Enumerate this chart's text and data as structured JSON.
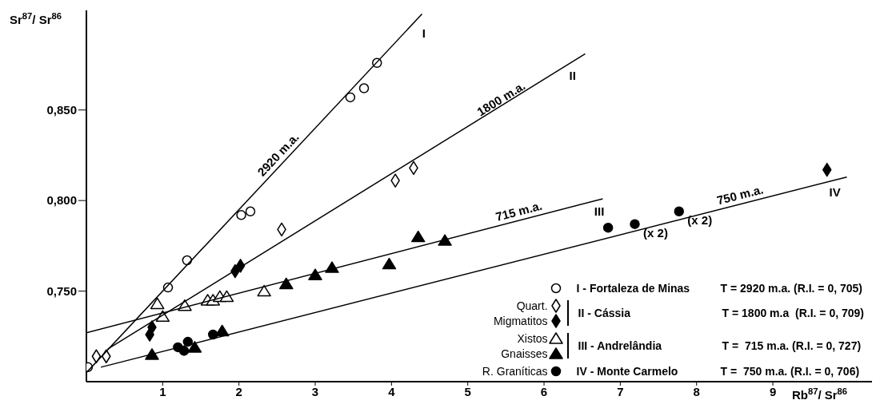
{
  "chart_data": {
    "type": "scatter",
    "xlabel": "Rb$^{87}$/ Sr$^{86}$",
    "ylabel": "Sr$^{87}$/ Sr$^{86}$",
    "xlim": [
      0,
      10.3
    ],
    "ylim": [
      0.7,
      0.905
    ],
    "xticks": [
      1,
      2,
      3,
      4,
      5,
      6,
      7,
      8,
      9
    ],
    "yticks": [
      {
        "value": 0.75,
        "label": "0,750"
      },
      {
        "value": 0.8,
        "label": "0,800"
      },
      {
        "value": 0.85,
        "label": "0,850"
      }
    ],
    "legend": "bottom right",
    "series": [
      {
        "marker": "circle",
        "color": "#ffffff",
        "x": [
          0.02,
          1.07,
          1.32,
          2.03,
          2.15,
          3.46,
          3.64,
          3.81
        ],
        "values": [
          0.708,
          0.752,
          0.767,
          0.792,
          0.794,
          0.857,
          0.862,
          0.876
        ]
      },
      {
        "name": "Quart.",
        "marker": "diamond",
        "color": "#ffffff",
        "x": [
          0.13,
          0.26,
          2.56,
          4.05,
          4.29
        ],
        "values": [
          0.714,
          0.714,
          0.784,
          0.811,
          0.818
        ]
      },
      {
        "name": "Migmatitos",
        "marker": "diamond",
        "color": "#000000",
        "x": [
          0.83,
          0.86,
          1.95,
          2.02,
          9.71
        ],
        "values": [
          0.726,
          0.73,
          0.761,
          0.764,
          0.817
        ]
      },
      {
        "name": "Xistos",
        "marker": "triangle",
        "color": "#ffffff",
        "x": [
          0.93,
          1.0,
          1.29,
          1.59,
          1.66,
          1.75,
          1.84,
          2.33
        ],
        "values": [
          0.743,
          0.736,
          0.742,
          0.745,
          0.745,
          0.747,
          0.747,
          0.75
        ]
      },
      {
        "name": "Gnaisses",
        "marker": "triangle",
        "color": "#000000",
        "x": [
          0.86,
          1.42,
          1.78,
          2.62,
          3.0,
          3.22,
          3.97,
          4.35,
          4.7
        ],
        "values": [
          0.715,
          0.719,
          0.728,
          0.754,
          0.759,
          0.763,
          0.765,
          0.78,
          0.778
        ]
      },
      {
        "name": "R. Graníticas",
        "marker": "circle",
        "color": "#000000",
        "x": [
          1.2,
          1.28,
          1.33,
          1.66,
          6.84,
          7.19,
          7.77
        ],
        "values": [
          0.719,
          0.717,
          0.722,
          0.726,
          0.785,
          0.787,
          0.794
        ]
      },
      {
        "type": "line",
        "color": "#000000",
        "x": [
          0,
          4.4
        ],
        "values": [
          0.705,
          0.903
        ]
      },
      {
        "type": "line",
        "color": "#000000",
        "x": [
          0.28,
          6.54
        ],
        "values": [
          0.718,
          0.881
        ]
      },
      {
        "type": "line",
        "color": "#000000",
        "x": [
          0,
          6.77
        ],
        "values": [
          0.727,
          0.801
        ]
      },
      {
        "type": "line",
        "color": "#000000",
        "x": [
          0.19,
          9.97
        ],
        "values": [
          0.708,
          0.813
        ]
      }
    ],
    "annotations": [
      {
        "text": "2920 m.a.",
        "x": 2.6,
        "y": 0.822
      },
      {
        "text": "I",
        "x": 4.34,
        "y": 0.898
      },
      {
        "text": "1800 m.a.",
        "x": 5.5,
        "y": 0.852
      },
      {
        "text": "II",
        "x": 6.29,
        "y": 0.8745
      },
      {
        "text": "715 m.a.",
        "x": 5.7,
        "y": 0.7893
      },
      {
        "text": "III",
        "x": 6.64,
        "y": 0.7996
      },
      {
        "text": "750 m.a.",
        "x": 8.6,
        "y": 0.7983
      },
      {
        "text": "IV",
        "x": 9.73,
        "y": 0.8104
      },
      {
        "text": "(x 2)",
        "x": 7.19,
        "y": 0.787
      },
      {
        "text": "(x 2)",
        "x": 7.77,
        "y": 0.794
      },
      "I  - Fortaleza de Minas",
      "T = 2920 m.a. (R.I. = 0, 705)",
      "II  - Cássia",
      "T = 1800 m.a  (R.I. = 0, 709)",
      "III - Andrelândia",
      "T =  715 m.a. (R.I. = 0, 727)",
      "IV - Monte Carmelo",
      "T =  750 m.a. (R.I. = 0, 706)"
    ]
  }
}
